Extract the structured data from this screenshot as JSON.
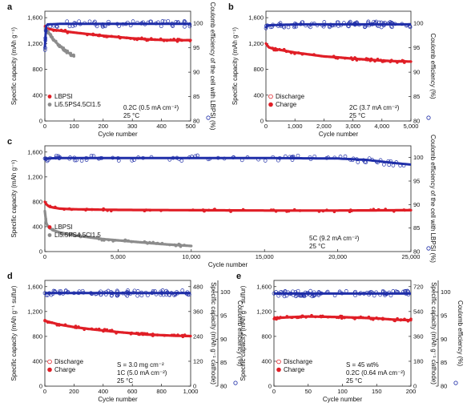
{
  "colors": {
    "capacity": "#e01e26",
    "lbpsi_capacity": "#e01e26",
    "lpsc_capacity": "#8c8c8c",
    "ce": "#1f2ea8"
  },
  "chart_data": [
    {
      "id": "a",
      "type": "scatter",
      "panel_label": "a",
      "xlabel": "Cycle number",
      "ylabel_left": "Specific capacity (mAh g⁻¹)",
      "ylabel_right": "Coulomb efficiency of the cell with LBPSI (%)",
      "xlim": [
        0,
        500
      ],
      "ylim_left": [
        0,
        1700
      ],
      "ylim_right": [
        80,
        102.5
      ],
      "xticks": [
        "0",
        "100",
        "200",
        "300",
        "400",
        "500"
      ],
      "yticks_left": [
        "0",
        "400",
        "800",
        "1,200",
        "1,600"
      ],
      "yticks_right": [
        "80",
        "85",
        "90",
        "95",
        "100"
      ],
      "legend": [
        "LBPSI",
        "Li5.5PS4.5Cl1.5"
      ],
      "annotations": [
        "0.2C (0.5 mA cm⁻²)",
        "25 °C"
      ],
      "series": [
        {
          "name": "LBPSI",
          "role": "capacity",
          "x": [
            1,
            5,
            10,
            20,
            30,
            50,
            75,
            100,
            150,
            200,
            250,
            300,
            350,
            400,
            450,
            500
          ],
          "y": [
            1450,
            1440,
            1430,
            1420,
            1410,
            1400,
            1385,
            1370,
            1345,
            1320,
            1300,
            1280,
            1265,
            1255,
            1250,
            1252
          ]
        },
        {
          "name": "Li5.5PS4.5Cl1.5",
          "role": "capacity2",
          "x": [
            1,
            5,
            10,
            20,
            30,
            40,
            50,
            60,
            70,
            80,
            90,
            100
          ],
          "y": [
            1420,
            1400,
            1380,
            1320,
            1260,
            1210,
            1170,
            1130,
            1090,
            1060,
            1030,
            1000
          ]
        },
        {
          "name": "CE",
          "role": "ce",
          "x": [
            1,
            2,
            3,
            5,
            10,
            50,
            100,
            200,
            300,
            400,
            500
          ],
          "y": [
            95,
            97,
            98.5,
            99.5,
            99.8,
            99.9,
            99.9,
            99.9,
            99.9,
            99.9,
            99.9
          ]
        }
      ]
    },
    {
      "id": "b",
      "type": "scatter",
      "panel_label": "b",
      "xlabel": "Cycle number",
      "ylabel_left": "Specific capacity (mAh g⁻¹)",
      "ylabel_right": "Coulomb efficiency (%)",
      "xlim": [
        0,
        5000
      ],
      "ylim_left": [
        0,
        1700
      ],
      "ylim_right": [
        80,
        102.5
      ],
      "xticks": [
        "0",
        "1,000",
        "2,000",
        "3,000",
        "4,000",
        "5,000"
      ],
      "yticks_left": [
        "0",
        "400",
        "800",
        "1,200",
        "1,600"
      ],
      "yticks_right": [
        "80",
        "85",
        "90",
        "95",
        "100"
      ],
      "legend": [
        "Discharge",
        "Charge"
      ],
      "annotations": [
        "2C (3.7 mA cm⁻²)",
        "25 °C"
      ],
      "series": [
        {
          "name": "Discharge",
          "role": "capacity",
          "x": [
            0,
            100,
            250,
            500,
            1000,
            1500,
            2000,
            2500,
            3000,
            3500,
            4000,
            4500,
            5000
          ],
          "y": [
            1200,
            1140,
            1120,
            1100,
            1060,
            1030,
            1000,
            985,
            965,
            950,
            935,
            925,
            920
          ]
        },
        {
          "name": "CE",
          "role": "ce",
          "x": [
            0,
            50,
            500,
            1000,
            1500,
            2000,
            2500,
            3000,
            3500,
            4000,
            4500,
            5000
          ],
          "y": [
            99,
            99.6,
            99.7,
            99.8,
            99.8,
            99.8,
            99.8,
            99.8,
            99.8,
            99.8,
            99.8,
            99.8
          ]
        }
      ]
    },
    {
      "id": "c",
      "type": "scatter",
      "panel_label": "c",
      "xlabel": "Cycle number",
      "ylabel_left": "Specific capacity (mAh g⁻¹)",
      "ylabel_right": "Coulomb efficiency of the cell with LBPSI (%)",
      "xlim": [
        0,
        25000
      ],
      "ylim_left": [
        0,
        1700
      ],
      "ylim_right": [
        80,
        102.5
      ],
      "xticks": [
        "0",
        "5,000",
        "10,000",
        "15,000",
        "20,000",
        "25,000"
      ],
      "yticks_left": [
        "0",
        "400",
        "800",
        "1,200",
        "1,600"
      ],
      "yticks_right": [
        "80",
        "85",
        "90",
        "95",
        "100"
      ],
      "legend": [
        "LBPSI",
        "Li5.5PS4.5Cl1.5"
      ],
      "annotations": [
        "5C (9.2 mA cm⁻²)",
        "25 °C"
      ],
      "series": [
        {
          "name": "LBPSI",
          "role": "capacity",
          "x": [
            0,
            100,
            300,
            1000,
            2000,
            5000,
            10000,
            15000,
            20000,
            25000
          ],
          "y": [
            800,
            760,
            720,
            690,
            680,
            670,
            665,
            660,
            660,
            665
          ]
        },
        {
          "name": "Li5.5PS4.5Cl1.5",
          "role": "capacity2",
          "x": [
            0,
            100,
            300,
            600,
            1000,
            2000,
            4000,
            6000,
            8000,
            10000
          ],
          "y": [
            650,
            450,
            380,
            340,
            310,
            260,
            200,
            160,
            120,
            90
          ]
        },
        {
          "name": "CE",
          "role": "ce",
          "x": [
            0,
            1000,
            5000,
            10000,
            15000,
            20000,
            22000,
            24000,
            25000
          ],
          "y": [
            99.8,
            99.9,
            99.9,
            99.9,
            99.9,
            99.8,
            99.5,
            98.8,
            98.5
          ]
        }
      ]
    },
    {
      "id": "d",
      "type": "scatter",
      "panel_label": "d",
      "xlabel": "Cycle number",
      "ylabel_left": "Specific capacity (mAh g⁻¹ sulfur)",
      "ylabel_right": "Specific capacity (mAh g⁻¹ cathode)",
      "ylabel_right2": "Coulomb efficiency (%)",
      "xlim": [
        0,
        1000
      ],
      "ylim_left": [
        0,
        1700
      ],
      "ylim_right": [
        80,
        102.5
      ],
      "xticks": [
        "0",
        "200",
        "400",
        "600",
        "800",
        "1,000"
      ],
      "yticks_left": [
        "0",
        "400",
        "800",
        "1,200",
        "1,600"
      ],
      "yticks_right_cap": [
        "0",
        "120",
        "240",
        "360",
        "480"
      ],
      "yticks_right": [
        "80",
        "85",
        "90",
        "95",
        "100"
      ],
      "legend": [
        "Discharge",
        "Charge"
      ],
      "annotations": [
        "S = 3.0 mg cm⁻²",
        "1C (5.0 mA cm⁻²)",
        "25 °C"
      ],
      "series": [
        {
          "name": "Discharge",
          "role": "capacity",
          "x": [
            0,
            50,
            100,
            200,
            300,
            400,
            500,
            600,
            700,
            800,
            900,
            1000
          ],
          "y": [
            1050,
            1020,
            990,
            950,
            920,
            895,
            870,
            850,
            830,
            820,
            810,
            805
          ]
        },
        {
          "name": "CE",
          "role": "ce",
          "x": [
            0,
            100,
            200,
            400,
            600,
            800,
            1000
          ],
          "y": [
            99.8,
            99.8,
            99.8,
            99.8,
            99.8,
            99.8,
            99.8
          ]
        }
      ]
    },
    {
      "id": "e",
      "type": "scatter",
      "panel_label": "e",
      "xlabel": "Cycle number",
      "ylabel_left": "Specific capacity (mAh g⁻¹ sulfur)",
      "ylabel_right": "Specific capacity (mAh g⁻¹ cathode)",
      "ylabel_right2": "Coulomb efficiency (%)",
      "xlim": [
        0,
        200
      ],
      "ylim_left": [
        0,
        1700
      ],
      "ylim_right": [
        80,
        102.5
      ],
      "xticks": [
        "0",
        "50",
        "100",
        "150",
        "200"
      ],
      "yticks_left": [
        "0",
        "400",
        "800",
        "1,200",
        "1,600"
      ],
      "yticks_right_cap": [
        "0",
        "180",
        "360",
        "540",
        "720"
      ],
      "yticks_right": [
        "80",
        "85",
        "90",
        "95",
        "100"
      ],
      "legend": [
        "Discharge",
        "Charge"
      ],
      "annotations": [
        "S = 45 wt%",
        "0.2C (0.64 mA cm⁻²)",
        "25 °C"
      ],
      "series": [
        {
          "name": "Discharge",
          "role": "capacity",
          "x": [
            0,
            10,
            25,
            50,
            75,
            100,
            125,
            150,
            175,
            200
          ],
          "y": [
            1080,
            1100,
            1110,
            1120,
            1115,
            1110,
            1100,
            1090,
            1070,
            1060
          ]
        },
        {
          "name": "CE",
          "role": "ce",
          "x": [
            0,
            25,
            50,
            75,
            100,
            125,
            150,
            175,
            200
          ],
          "y": [
            99.7,
            99.7,
            99.7,
            99.7,
            99.7,
            99.7,
            99.7,
            99.7,
            99.7
          ]
        }
      ]
    }
  ]
}
